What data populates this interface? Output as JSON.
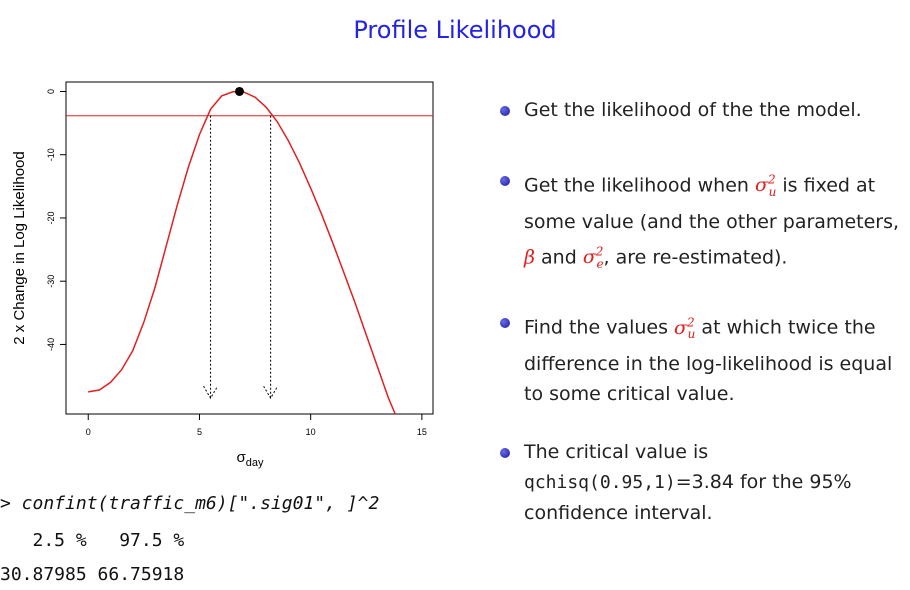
{
  "slide": {
    "title": "Profile Likelihood"
  },
  "chart_data": {
    "type": "line",
    "title": "",
    "xlabel": "σ",
    "xlabel_subscript": "day",
    "ylabel": "2 x Change in Log Likelihood",
    "xlim": [
      -1,
      15.5
    ],
    "ylim": [
      -51,
      1.5
    ],
    "xticks": [
      0,
      5,
      10,
      15
    ],
    "yticks": [
      0,
      -10,
      -20,
      -30,
      -40
    ],
    "series": [
      {
        "color": "#e02020",
        "x": [
          0,
          0.5,
          1.0,
          1.5,
          2.0,
          2.5,
          3.0,
          3.5,
          4.0,
          4.5,
          5.0,
          5.5,
          6.0,
          6.5,
          6.8,
          7.0,
          7.5,
          8.0,
          8.5,
          9.0,
          9.5,
          10.0,
          10.5,
          11.0,
          11.5,
          12.0,
          12.5,
          13.0,
          13.5,
          13.8
        ],
        "y": [
          -47.5,
          -47.2,
          -46.0,
          -44.0,
          -41.0,
          -36.5,
          -31.0,
          -24.5,
          -18.0,
          -12.0,
          -6.8,
          -2.8,
          -0.7,
          -0.05,
          0.0,
          -0.1,
          -0.9,
          -2.5,
          -4.8,
          -7.8,
          -11.3,
          -15.3,
          -19.5,
          -24.0,
          -28.7,
          -33.5,
          -38.5,
          -43.5,
          -48.5,
          -51.0
        ]
      }
    ],
    "reference_line": {
      "y": -3.84,
      "color": "#e02020"
    },
    "max_point": {
      "x": 6.8,
      "y": 0.0
    },
    "ci_bounds": [
      5.5,
      8.2
    ]
  },
  "code": {
    "prompt": "> confint(traffic_m6)[\".sig01\", ]^2",
    "header": "   2.5 %   97.5 %",
    "values": "30.87985 66.75918"
  },
  "bullets": {
    "b1": "Get the likelihood of the the model.",
    "b2_a": "Get the likelihood when ",
    "b2_b": " is fixed at some value (and the other parameters, ",
    "b2_c": " and ",
    "b2_d": ", are re-estimated).",
    "b3_a": "Find the values ",
    "b3_b": " at which twice the difference in the log-likelihood is equal to some critical value.",
    "b4_a": "The critical value is ",
    "b4_code": "qchisq(0.95,1)",
    "b4_b": "=3.84 for the 95% confidence interval.",
    "sym_sigma": "σ",
    "sym_sub_u": "u",
    "sym_sub_e": "e",
    "sym_sup": "2",
    "sym_beta": "β"
  }
}
